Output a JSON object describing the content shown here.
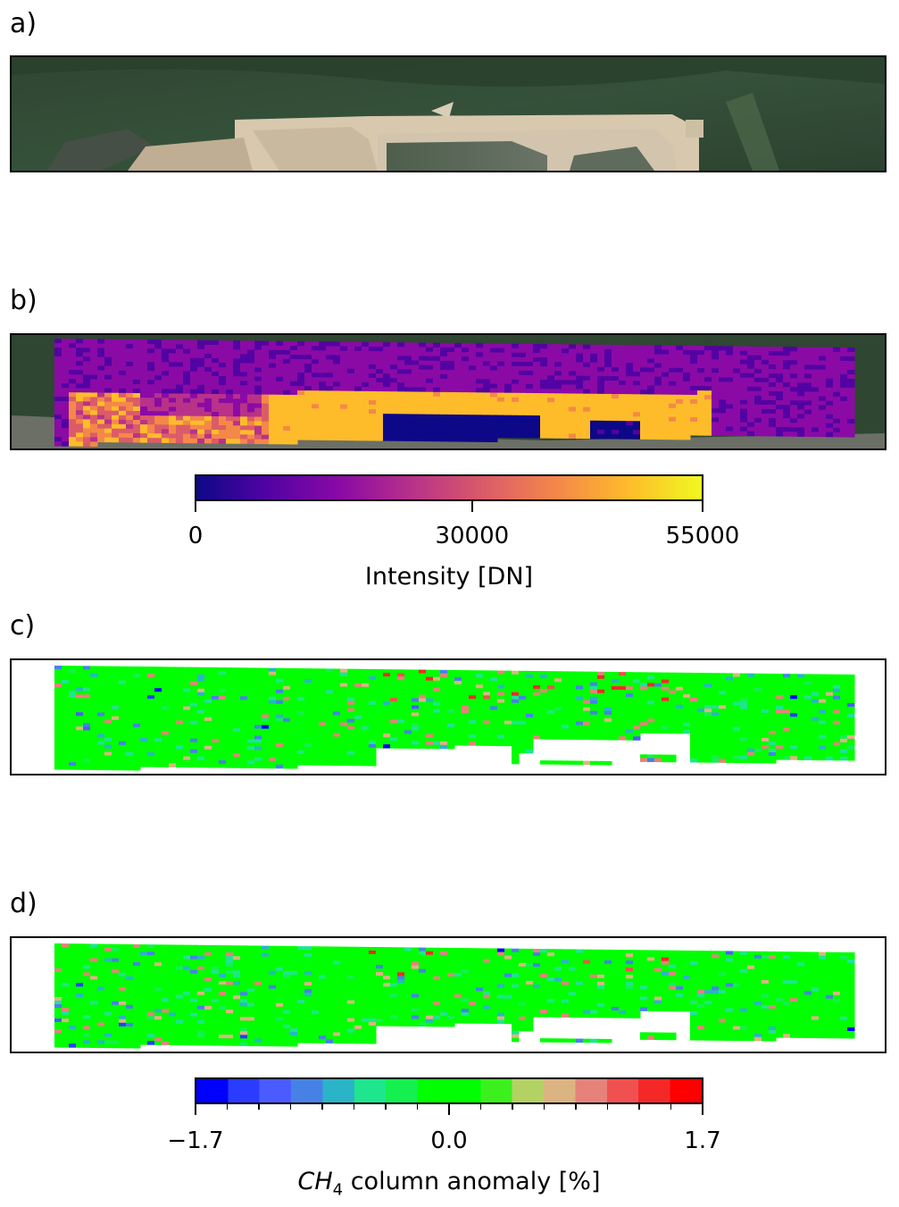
{
  "panels": {
    "a": {
      "label": "a)"
    },
    "b": {
      "label": "b)"
    },
    "c": {
      "label": "c)"
    },
    "d": {
      "label": "d)"
    }
  },
  "chart_data": [
    {
      "type": "heatmap",
      "panel": "b",
      "colormap": "plasma",
      "colorbar": {
        "label": "Intensity [DN]",
        "ticks": [
          0,
          30000,
          55000
        ],
        "tick_labels": [
          "0",
          "30000",
          "55000"
        ],
        "range": [
          0,
          55000
        ],
        "colors": [
          "#0d0887",
          "#5302a3",
          "#8b0aa5",
          "#b83289",
          "#db5c68",
          "#f48849",
          "#febc2a",
          "#f0f921"
        ]
      }
    },
    {
      "type": "heatmap",
      "panel": "c",
      "colorbar_ref": "CH4"
    },
    {
      "type": "heatmap",
      "panel": "d",
      "colorbar": {
        "label_main": "CH",
        "label_sub": "4",
        "label_rest": " column anomaly [%]",
        "ticks": [
          -1.7,
          0.0,
          1.7
        ],
        "tick_labels": [
          "−1.7",
          "0.0",
          "1.7"
        ],
        "range": [
          -1.7,
          1.7
        ],
        "bins": 16,
        "colors": [
          "#0000ff",
          "#2a3cff",
          "#4a5cff",
          "#4682e6",
          "#2ab4c8",
          "#1ee68c",
          "#14f050",
          "#00ff00",
          "#00ff00",
          "#3cf01e",
          "#b4d264",
          "#dcb482",
          "#e6827a",
          "#f05050",
          "#f52828",
          "#ff0000"
        ]
      }
    }
  ]
}
